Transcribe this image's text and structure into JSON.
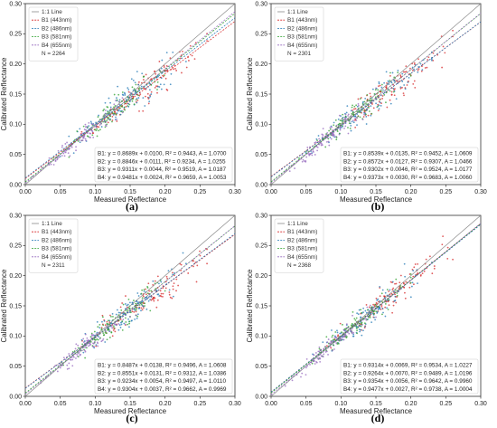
{
  "chart_data": [
    {
      "type": "scatter",
      "panel_label": "(a)",
      "xlabel": "Measured Reflectance",
      "ylabel": "Calibrated Reflectance",
      "xlim": [
        0,
        0.3
      ],
      "ylim": [
        0,
        0.3
      ],
      "xticks": [
        "0.00",
        "0.05",
        "0.10",
        "0.15",
        "0.20",
        "0.25",
        "0.30"
      ],
      "yticks": [
        "0.00",
        "0.05",
        "0.10",
        "0.15",
        "0.20",
        "0.25",
        "0.30"
      ],
      "legend_position": "top-left",
      "legend": [
        "1:1 Line",
        "B1 (443nm)",
        "B2 (486nm)",
        "B3 (581nm)",
        "B4 (655nm)",
        "N = 2264"
      ],
      "reference_line": "1:1 Line",
      "N": 2264,
      "series": [
        {
          "name": "B1 (443nm)",
          "color": "#d62728",
          "slope": 0.8689,
          "intercept": 0.01,
          "r2": 0.9443,
          "A": 1.07,
          "x_range": [
            0.09,
            0.26
          ],
          "equation": "B1:  y = 0.8689x + 0.0100,  R² = 0.9443, A = 1.0700"
        },
        {
          "name": "B2 (486nm)",
          "color": "#1f77b4",
          "slope": 0.8846,
          "intercept": 0.0111,
          "r2": 0.9234,
          "A": 1.0255,
          "x_range": [
            0.06,
            0.23
          ],
          "equation": "B2:  y = 0.8846x + 0.0111,  R² = 0.9234, A = 1.0255"
        },
        {
          "name": "B3 (581nm)",
          "color": "#2ca02c",
          "slope": 0.9311,
          "intercept": 0.0044,
          "r2": 0.9519,
          "A": 1.0187,
          "x_range": [
            0.05,
            0.2
          ],
          "equation": "B3:  y = 0.9311x + 0.0044,  R² = 0.9519, A = 1.0187"
        },
        {
          "name": "B4 (655nm)",
          "color": "#9467bd",
          "slope": 0.9481,
          "intercept": 0.0024,
          "r2": 0.9659,
          "A": 1.0053,
          "x_range": [
            0.02,
            0.15
          ],
          "equation": "B4:  y = 0.9481x + 0.0024,  R² = 0.9659, A = 1.0053"
        }
      ]
    },
    {
      "type": "scatter",
      "panel_label": "(b)",
      "xlabel": "Measured Reflectance",
      "ylabel": "Calibrated Reflectance",
      "xlim": [
        0,
        0.3
      ],
      "ylim": [
        0,
        0.3
      ],
      "xticks": [
        "0.00",
        "0.05",
        "0.10",
        "0.15",
        "0.20",
        "0.25",
        "0.30"
      ],
      "yticks": [
        "0.00",
        "0.05",
        "0.10",
        "0.15",
        "0.20",
        "0.25",
        "0.30"
      ],
      "legend_position": "top-left",
      "legend": [
        "1:1 Line",
        "B1 (443nm)",
        "B2 (486nm)",
        "B3 (581nm)",
        "B4 (655nm)",
        "N = 2301"
      ],
      "reference_line": "1:1 Line",
      "N": 2301,
      "series": [
        {
          "name": "B1 (443nm)",
          "color": "#d62728",
          "slope": 0.8539,
          "intercept": 0.0135,
          "r2": 0.9452,
          "A": 1.0609,
          "x_range": [
            0.09,
            0.26
          ],
          "equation": "B1:  y = 0.8539x + 0.0135,  R² = 0.9452, A = 1.0609"
        },
        {
          "name": "B2 (486nm)",
          "color": "#1f77b4",
          "slope": 0.8572,
          "intercept": 0.0127,
          "r2": 0.9307,
          "A": 1.0466,
          "x_range": [
            0.06,
            0.23
          ],
          "equation": "B2:  y = 0.8572x + 0.0127,  R² = 0.9307, A = 1.0466"
        },
        {
          "name": "B3 (581nm)",
          "color": "#2ca02c",
          "slope": 0.9302,
          "intercept": 0.0046,
          "r2": 0.9524,
          "A": 1.0177,
          "x_range": [
            0.05,
            0.2
          ],
          "equation": "B3:  y = 0.9302x + 0.0046,  R² = 0.9524, A = 1.0177"
        },
        {
          "name": "B4 (655nm)",
          "color": "#9467bd",
          "slope": 0.9373,
          "intercept": 0.003,
          "r2": 0.9683,
          "A": 1.006,
          "x_range": [
            0.02,
            0.15
          ],
          "equation": "B4:  y = 0.9373x + 0.0030,  R² = 0.9683, A = 1.0060"
        }
      ]
    },
    {
      "type": "scatter",
      "panel_label": "(c)",
      "xlabel": "Measured Reflectance",
      "ylabel": "Calibrated Reflectance",
      "xlim": [
        0,
        0.3
      ],
      "ylim": [
        0,
        0.3
      ],
      "xticks": [
        "0.00",
        "0.05",
        "0.10",
        "0.15",
        "0.20",
        "0.25",
        "0.30"
      ],
      "yticks": [
        "0.00",
        "0.05",
        "0.10",
        "0.15",
        "0.20",
        "0.25",
        "0.30"
      ],
      "legend_position": "top-left",
      "legend": [
        "1:1 Line",
        "B1 (443nm)",
        "B2 (486nm)",
        "B3 (581nm)",
        "B4 (655nm)",
        "N = 2311"
      ],
      "reference_line": "1:1 Line",
      "N": 2311,
      "series": [
        {
          "name": "B1 (443nm)",
          "color": "#d62728",
          "slope": 0.8487,
          "intercept": 0.0138,
          "r2": 0.9496,
          "A": 1.0608,
          "x_range": [
            0.09,
            0.26
          ],
          "equation": "B1:  y = 0.8487x + 0.0138,  R² = 0.9496, A = 1.0608"
        },
        {
          "name": "B2 (486nm)",
          "color": "#1f77b4",
          "slope": 0.8551,
          "intercept": 0.0131,
          "r2": 0.9312,
          "A": 1.0386,
          "x_range": [
            0.06,
            0.23
          ],
          "equation": "B2:  y = 0.8551x + 0.0131,  R² = 0.9312, A = 1.0386"
        },
        {
          "name": "B3 (581nm)",
          "color": "#2ca02c",
          "slope": 0.9234,
          "intercept": 0.0054,
          "r2": 0.9497,
          "A": 1.011,
          "x_range": [
            0.05,
            0.2
          ],
          "equation": "B3:  y = 0.9234x + 0.0054,  R² = 0.9497, A = 1.0110"
        },
        {
          "name": "B4 (655nm)",
          "color": "#9467bd",
          "slope": 0.9304,
          "intercept": 0.0037,
          "r2": 0.9662,
          "A": 0.9969,
          "x_range": [
            0.02,
            0.15
          ],
          "equation": "B4:  y = 0.9304x + 0.0037,  R² = 0.9662, A = 0.9969"
        }
      ]
    },
    {
      "type": "scatter",
      "panel_label": "(d)",
      "xlabel": "Measured Reflectance",
      "ylabel": "Calibrated Reflectance",
      "xlim": [
        0,
        0.3
      ],
      "ylim": [
        0,
        0.3
      ],
      "xticks": [
        "0.00",
        "0.05",
        "0.10",
        "0.15",
        "0.20",
        "0.25",
        "0.30"
      ],
      "yticks": [
        "0.00",
        "0.05",
        "0.10",
        "0.15",
        "0.20",
        "0.25",
        "0.30"
      ],
      "legend_position": "top-left",
      "legend": [
        "1:1 Line",
        "B1 (443nm)",
        "B2 (486nm)",
        "B3 (581nm)",
        "B4 (655nm)",
        "N = 2368"
      ],
      "reference_line": "1:1 Line",
      "N": 2368,
      "series": [
        {
          "name": "B1 (443nm)",
          "color": "#d62728",
          "slope": 0.9314,
          "intercept": 0.0069,
          "r2": 0.9534,
          "A": 1.0227,
          "x_range": [
            0.09,
            0.26
          ],
          "equation": "B1:  y = 0.9314x + 0.0069,  R² = 0.9534, A = 1.0227"
        },
        {
          "name": "B2 (486nm)",
          "color": "#1f77b4",
          "slope": 0.9264,
          "intercept": 0.007,
          "r2": 0.9489,
          "A": 1.0196,
          "x_range": [
            0.06,
            0.23
          ],
          "equation": "B2:  y = 0.9264x + 0.0070,  R² = 0.9489, A = 1.0196"
        },
        {
          "name": "B3 (581nm)",
          "color": "#2ca02c",
          "slope": 0.9354,
          "intercept": 0.0056,
          "r2": 0.9642,
          "A": 0.996,
          "x_range": [
            0.05,
            0.2
          ],
          "equation": "B3:  y = 0.9354x + 0.0056,  R² = 0.9642, A = 0.9960"
        },
        {
          "name": "B4 (655nm)",
          "color": "#9467bd",
          "slope": 0.9477,
          "intercept": 0.0027,
          "r2": 0.9738,
          "A": 1.0004,
          "x_range": [
            0.02,
            0.15
          ],
          "equation": "B4:  y = 0.9477x + 0.0027,  R² = 0.9738, A = 1.0004"
        }
      ]
    }
  ]
}
